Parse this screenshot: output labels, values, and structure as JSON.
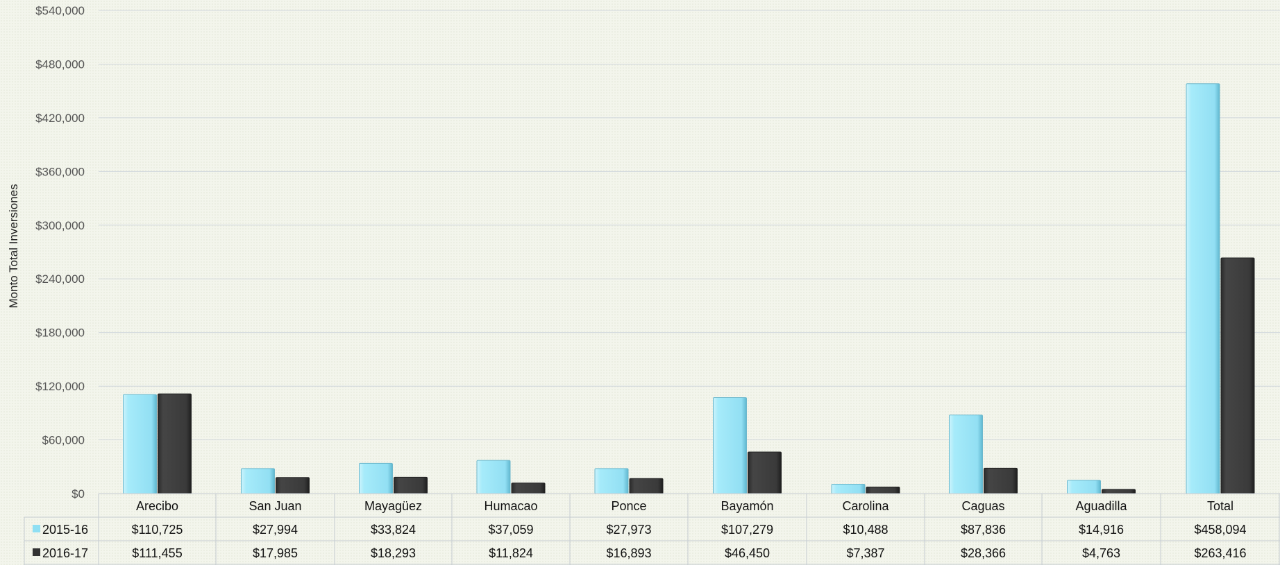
{
  "chart_data": {
    "type": "bar",
    "ylabel": "Monto Total Inversiones",
    "ylim": [
      0,
      540000
    ],
    "yticks": [
      "$0",
      "$60,000",
      "$120,000",
      "$180,000",
      "$240,000",
      "$300,000",
      "$360,000",
      "$420,000",
      "$480,000",
      "$540,000"
    ],
    "ytick_values": [
      0,
      60000,
      120000,
      180000,
      240000,
      300000,
      360000,
      420000,
      480000,
      540000
    ],
    "categories": [
      "Arecibo",
      "San Juan",
      "Mayagüez",
      "Humacao",
      "Ponce",
      "Bayamón",
      "Carolina",
      "Caguas",
      "Aguadilla",
      "Total"
    ],
    "series": [
      {
        "name": "2015-16",
        "color": "#9ee6f7",
        "values": [
          110725,
          27994,
          33824,
          37059,
          27973,
          107279,
          10488,
          87836,
          14916,
          458094
        ],
        "labels": [
          "$110,725",
          "$27,994",
          "$33,824",
          "$37,059",
          "$27,973",
          "$107,279",
          "$10,488",
          "$87,836",
          "$14,916",
          "$458,094"
        ]
      },
      {
        "name": "2016-17",
        "color": "#404040",
        "values": [
          111455,
          17985,
          18293,
          11824,
          16893,
          46450,
          7387,
          28366,
          4763,
          263416
        ],
        "labels": [
          "$111,455",
          "$17,985",
          "$18,293",
          "$11,824",
          "$16,893",
          "$46,450",
          "$7,387",
          "$28,366",
          "$4,763",
          "$263,416"
        ]
      }
    ],
    "grid": true,
    "legend": "data-table"
  }
}
